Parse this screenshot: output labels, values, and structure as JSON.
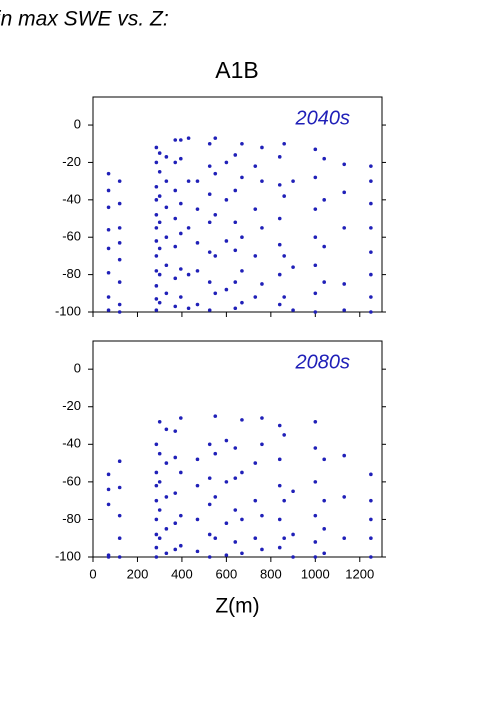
{
  "heading": "in max SWE vs. Z:",
  "chart_data": [
    {
      "type": "scatter",
      "title": "A1B",
      "annotation": "2040s",
      "xlim": [
        0,
        1300
      ],
      "ylim": [
        -100,
        15
      ],
      "xticks": [
        0,
        200,
        400,
        600,
        800,
        1000,
        1200
      ],
      "yticks": [
        -100,
        -80,
        -60,
        -40,
        -20,
        0
      ],
      "series": [
        {
          "color": "#2020b8",
          "x": [
            70,
            70,
            70,
            70,
            70,
            70,
            70,
            70,
            120,
            120,
            120,
            120,
            120,
            120,
            120,
            120,
            285,
            285,
            285,
            285,
            285,
            285,
            285,
            285,
            285,
            285,
            285,
            285,
            300,
            300,
            300,
            300,
            300,
            300,
            300,
            330,
            330,
            330,
            330,
            330,
            330,
            370,
            370,
            370,
            370,
            370,
            370,
            370,
            395,
            395,
            395,
            395,
            395,
            395,
            430,
            430,
            430,
            430,
            430,
            470,
            470,
            470,
            470,
            470,
            525,
            525,
            525,
            525,
            525,
            525,
            525,
            550,
            550,
            550,
            550,
            550,
            600,
            600,
            600,
            600,
            640,
            640,
            640,
            640,
            640,
            640,
            670,
            670,
            670,
            670,
            670,
            730,
            730,
            730,
            730,
            760,
            760,
            760,
            760,
            840,
            840,
            840,
            840,
            840,
            840,
            860,
            860,
            860,
            860,
            900,
            900,
            900,
            1000,
            1000,
            1000,
            1000,
            1000,
            1000,
            1000,
            1040,
            1040,
            1040,
            1040,
            1130,
            1130,
            1130,
            1130,
            1130,
            1250,
            1250,
            1250,
            1250,
            1250,
            1250,
            1250,
            1250
          ],
          "values": [
            -26,
            -35,
            -44,
            -56,
            -66,
            -79,
            -92,
            -99,
            -30,
            -42,
            -55,
            -63,
            -72,
            -84,
            -96,
            -100,
            -12,
            -20,
            -33,
            -40,
            -48,
            -55,
            -62,
            -70,
            -78,
            -86,
            -93,
            -99,
            -15,
            -25,
            -38,
            -52,
            -66,
            -80,
            -95,
            -17,
            -30,
            -44,
            -60,
            -75,
            -90,
            -8,
            -20,
            -35,
            -50,
            -65,
            -82,
            -97,
            -8,
            -18,
            -42,
            -58,
            -77,
            -92,
            -7,
            -30,
            -55,
            -80,
            -98,
            -30,
            -45,
            -63,
            -78,
            -96,
            -10,
            -22,
            -37,
            -52,
            -68,
            -84,
            -99,
            -7,
            -26,
            -48,
            -70,
            -90,
            -20,
            -40,
            -62,
            -88,
            -16,
            -35,
            -52,
            -67,
            -84,
            -98,
            -10,
            -28,
            -60,
            -78,
            -95,
            -22,
            -45,
            -70,
            -92,
            -12,
            -30,
            -55,
            -85,
            -17,
            -32,
            -50,
            -64,
            -80,
            -96,
            -10,
            -38,
            -70,
            -92,
            -30,
            -76,
            -99,
            -13,
            -28,
            -45,
            -60,
            -75,
            -90,
            -100,
            -18,
            -40,
            -65,
            -84,
            -21,
            -36,
            -55,
            -85,
            -99,
            -22,
            -30,
            -42,
            -55,
            -68,
            -80,
            -92,
            -100
          ]
        }
      ]
    },
    {
      "type": "scatter",
      "annotation": "2080s",
      "xlabel": "Z(m)",
      "xlim": [
        0,
        1300
      ],
      "ylim": [
        -100,
        15
      ],
      "xticks": [
        0,
        200,
        400,
        600,
        800,
        1000,
        1200
      ],
      "yticks": [
        -100,
        -80,
        -60,
        -40,
        -20,
        0
      ],
      "series": [
        {
          "color": "#2020b8",
          "x": [
            70,
            70,
            70,
            70,
            70,
            120,
            120,
            120,
            120,
            120,
            285,
            285,
            285,
            285,
            285,
            285,
            285,
            285,
            300,
            300,
            300,
            300,
            300,
            330,
            330,
            330,
            330,
            330,
            370,
            370,
            370,
            370,
            370,
            395,
            395,
            395,
            395,
            470,
            470,
            470,
            470,
            525,
            525,
            525,
            525,
            525,
            550,
            550,
            550,
            550,
            600,
            600,
            600,
            600,
            640,
            640,
            640,
            640,
            670,
            670,
            670,
            670,
            730,
            730,
            730,
            760,
            760,
            760,
            760,
            840,
            840,
            840,
            840,
            840,
            860,
            860,
            860,
            900,
            900,
            900,
            1000,
            1000,
            1000,
            1000,
            1000,
            1000,
            1040,
            1040,
            1040,
            1040,
            1130,
            1130,
            1130,
            1250,
            1250,
            1250,
            1250,
            1250
          ],
          "values": [
            -56,
            -64,
            -72,
            -99,
            -100,
            -49,
            -63,
            -78,
            -90,
            -100,
            -40,
            -55,
            -62,
            -70,
            -80,
            -88,
            -95,
            -100,
            -28,
            -45,
            -60,
            -75,
            -90,
            -32,
            -50,
            -68,
            -85,
            -98,
            -33,
            -47,
            -66,
            -82,
            -96,
            -26,
            -55,
            -78,
            -94,
            -48,
            -62,
            -80,
            -97,
            -40,
            -58,
            -72,
            -88,
            -100,
            -25,
            -45,
            -68,
            -90,
            -38,
            -60,
            -82,
            -99,
            -42,
            -58,
            -75,
            -92,
            -27,
            -55,
            -80,
            -98,
            -50,
            -70,
            -90,
            -26,
            -40,
            -78,
            -96,
            -30,
            -48,
            -62,
            -80,
            -95,
            -35,
            -70,
            -90,
            -65,
            -88,
            -100,
            -28,
            -42,
            -60,
            -78,
            -92,
            -100,
            -48,
            -70,
            -85,
            -98,
            -46,
            -68,
            -90,
            -56,
            -70,
            -80,
            -90,
            -100
          ]
        }
      ]
    }
  ]
}
